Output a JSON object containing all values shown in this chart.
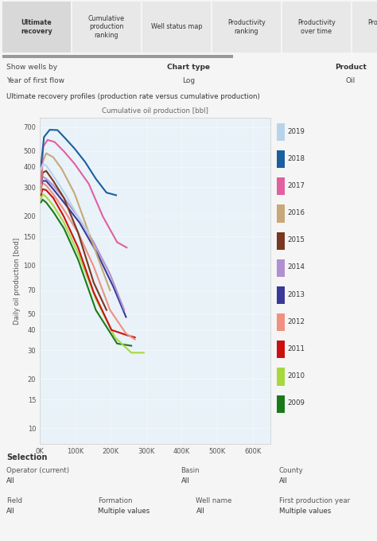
{
  "title": "Ultimate recovery profiles (production rate versus cumulative production)",
  "xlabel": "Cumulative oil production [bbl]",
  "ylabel": "Daily oil production [bod]",
  "tab_labels": [
    "Ultimate\nrecovery",
    "Cumulative\nproduction\nranking",
    "Well status map",
    "Productivity\nranking",
    "Productivity\nover time",
    "Productivity\nmap"
  ],
  "show_wells_by_label": "Show wells by",
  "show_wells_by": "Year of first flow",
  "chart_type_label": "Chart type",
  "chart_type": "Log",
  "product_label": "Product",
  "product": "Oil",
  "legend_years": [
    "2019",
    "2018",
    "2017",
    "2016",
    "2015",
    "2014",
    "2013",
    "2012",
    "2011",
    "2010",
    "2009"
  ],
  "legend_colors": [
    "#b8d4ea",
    "#1a5fa0",
    "#e060a0",
    "#c8a878",
    "#7a3820",
    "#b090d0",
    "#3a3898",
    "#f09080",
    "#cc1010",
    "#a8d840",
    "#1a7a1a"
  ],
  "bg_color": "#e8f2f8",
  "panel_bg": "#f0f8fc",
  "tab_active_color": "#d8d8d8",
  "tab_inactive_color": "#e8e8e8",
  "progress_color": "#888888",
  "curves": {
    "2019": {
      "color": "#b8d4ea",
      "x": [
        3000,
        8000,
        18000,
        32000,
        52000,
        78000,
        108000,
        140000
      ],
      "y": [
        385,
        415,
        408,
        368,
        318,
        258,
        198,
        155
      ]
    },
    "2018": {
      "color": "#1a5fa0",
      "x": [
        3000,
        12000,
        28000,
        50000,
        72000,
        98000,
        128000,
        158000,
        188000,
        215000
      ],
      "y": [
        400,
        610,
        675,
        672,
        598,
        518,
        428,
        338,
        278,
        268
      ]
    },
    "2017": {
      "color": "#e060a0",
      "x": [
        3000,
        10000,
        22000,
        42000,
        68000,
        98000,
        138000,
        178000,
        218000,
        245000
      ],
      "y": [
        318,
        535,
        585,
        568,
        498,
        418,
        315,
        198,
        138,
        128
      ]
    },
    "2016": {
      "color": "#c8a878",
      "x": [
        3000,
        8000,
        18000,
        38000,
        62000,
        98000,
        138000,
        173000,
        198000
      ],
      "y": [
        278,
        428,
        485,
        458,
        388,
        275,
        158,
        98,
        70
      ]
    },
    "2015": {
      "color": "#7a3820",
      "x": [
        3000,
        8000,
        18000,
        38000,
        68000,
        108000,
        152000,
        188000
      ],
      "y": [
        288,
        368,
        378,
        328,
        258,
        158,
        78,
        53
      ]
    },
    "2014": {
      "color": "#b090d0",
      "x": [
        3000,
        8000,
        18000,
        38000,
        68000,
        108000,
        152000,
        198000,
        238000
      ],
      "y": [
        308,
        348,
        338,
        308,
        258,
        198,
        138,
        88,
        53
      ]
    },
    "2013": {
      "color": "#3a3898",
      "x": [
        3000,
        8000,
        18000,
        38000,
        68000,
        112000,
        162000,
        208000,
        243000
      ],
      "y": [
        302,
        328,
        328,
        292,
        242,
        182,
        118,
        73,
        48
      ]
    },
    "2012": {
      "color": "#f09080",
      "x": [
        3000,
        8000,
        18000,
        38000,
        68000,
        108000,
        152000,
        198000,
        243000,
        268000
      ],
      "y": [
        288,
        318,
        308,
        272,
        218,
        158,
        98,
        53,
        38,
        35
      ]
    },
    "2011": {
      "color": "#cc1010",
      "x": [
        3000,
        8000,
        18000,
        38000,
        68000,
        108000,
        152000,
        202000,
        248000,
        268000
      ],
      "y": [
        268,
        292,
        288,
        258,
        198,
        128,
        68,
        40,
        37,
        36
      ]
    },
    "2010": {
      "color": "#a8d840",
      "x": [
        3000,
        8000,
        18000,
        38000,
        68000,
        108000,
        158000,
        212000,
        258000,
        293000
      ],
      "y": [
        252,
        272,
        262,
        232,
        182,
        118,
        62,
        36,
        29,
        29
      ]
    },
    "2009": {
      "color": "#1a7a1a",
      "x": [
        3000,
        8000,
        18000,
        38000,
        68000,
        108000,
        158000,
        218000,
        258000
      ],
      "y": [
        242,
        252,
        242,
        212,
        168,
        108,
        53,
        33,
        32
      ]
    }
  }
}
